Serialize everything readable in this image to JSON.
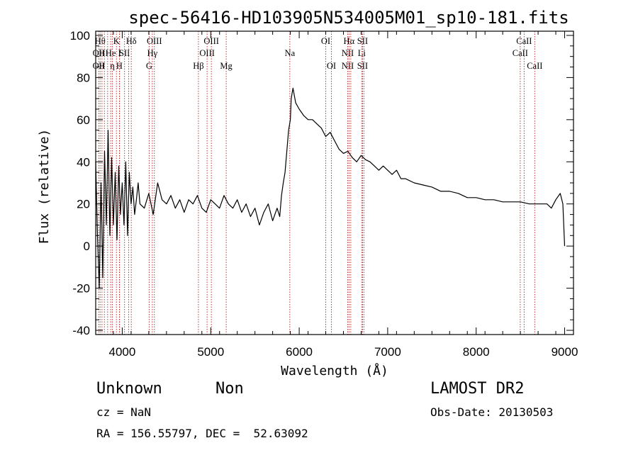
{
  "chart_data": {
    "type": "line",
    "title": "spec-56416-HD103905N534005M01_sp10-181.fits",
    "xlabel": "Wavelength (Å)",
    "ylabel": "Flux (relative)",
    "xlim": [
      3700,
      9100
    ],
    "ylim": [
      -42,
      102
    ],
    "xticks": [
      4000,
      5000,
      6000,
      7000,
      8000,
      9000
    ],
    "yticks": [
      -40,
      -20,
      0,
      20,
      40,
      60,
      80,
      100
    ],
    "grid": false,
    "series": [
      {
        "x": [
          3700,
          3720,
          3740,
          3760,
          3780,
          3800,
          3820,
          3840,
          3860,
          3880,
          3900,
          3920,
          3940,
          3960,
          3980,
          4000,
          4020,
          4040,
          4060,
          4080,
          4100,
          4120,
          4140,
          4160,
          4180,
          4200,
          4250,
          4300,
          4350,
          4400,
          4450,
          4500,
          4550,
          4600,
          4650,
          4700,
          4750,
          4800,
          4850,
          4900,
          4950,
          5000,
          5050,
          5100,
          5150,
          5200,
          5250,
          5300,
          5350,
          5400,
          5450,
          5500,
          5550,
          5600,
          5650,
          5700,
          5750,
          5780,
          5800,
          5820,
          5840,
          5860,
          5880,
          5900,
          5910,
          5930,
          5960,
          6000,
          6050,
          6100,
          6150,
          6200,
          6250,
          6300,
          6350,
          6400,
          6450,
          6500,
          6550,
          6600,
          6650,
          6700,
          6750,
          6800,
          6850,
          6900,
          6950,
          7000,
          7050,
          7100,
          7150,
          7200,
          7300,
          7400,
          7500,
          7600,
          7700,
          7800,
          7900,
          8000,
          8100,
          8200,
          8300,
          8400,
          8500,
          8600,
          8700,
          8800,
          8850,
          8900,
          8950,
          8980,
          9000
        ],
        "y": [
          40,
          5,
          -20,
          30,
          -15,
          45,
          10,
          55,
          5,
          42,
          10,
          35,
          3,
          38,
          15,
          30,
          10,
          40,
          5,
          35,
          20,
          28,
          15,
          22,
          30,
          20,
          18,
          25,
          15,
          30,
          22,
          20,
          24,
          18,
          22,
          16,
          22,
          20,
          24,
          18,
          16,
          22,
          20,
          18,
          24,
          20,
          18,
          22,
          16,
          20,
          14,
          18,
          10,
          16,
          20,
          12,
          18,
          14,
          24,
          30,
          35,
          45,
          55,
          60,
          70,
          75,
          68,
          65,
          62,
          60,
          60,
          58,
          56,
          52,
          54,
          50,
          46,
          44,
          45,
          42,
          40,
          43,
          41,
          40,
          38,
          36,
          38,
          36,
          34,
          36,
          32,
          32,
          30,
          29,
          28,
          26,
          26,
          25,
          23,
          23,
          22,
          22,
          21,
          21,
          21,
          20,
          20,
          20,
          18,
          22,
          25,
          20,
          0
        ]
      }
    ],
    "line_markers": [
      {
        "wl": 3734,
        "labels": [
          {
            "text": "OII",
            "row": 1
          },
          {
            "text": "OII",
            "row": 2
          }
        ]
      },
      {
        "wl": 3750,
        "labels": [
          {
            "text": "Hθ",
            "row": 0
          }
        ]
      },
      {
        "wl": 3771,
        "labels": [
          {
            "text": "H",
            "row": 1
          },
          {
            "text": "H",
            "row": 2
          }
        ]
      },
      {
        "wl": 3798,
        "labels": [
          {
            "text": "",
            "row": 0
          }
        ]
      },
      {
        "wl": 3835,
        "labels": [
          {
            "text": "",
            "row": 0
          }
        ]
      },
      {
        "wl": 3869,
        "labels": [
          {
            "text": "He",
            "row": 1
          }
        ]
      },
      {
        "wl": 3889,
        "labels": [
          {
            "text": "η",
            "row": 2
          }
        ]
      },
      {
        "wl": 3934,
        "labels": [
          {
            "text": "K",
            "row": 0
          }
        ]
      },
      {
        "wl": 3968,
        "labels": [
          {
            "text": "H",
            "row": 2
          }
        ]
      },
      {
        "wl": 3970,
        "labels": [
          {
            "text": "I",
            "row": 1
          }
        ]
      },
      {
        "wl": 4026,
        "labels": [
          {
            "text": "SII",
            "row": 1
          }
        ]
      },
      {
        "wl": 4072,
        "labels": [
          {
            "text": "",
            "row": 0
          }
        ]
      },
      {
        "wl": 4102,
        "labels": [
          {
            "text": "Hδ",
            "row": 0
          }
        ]
      },
      {
        "wl": 4304,
        "labels": [
          {
            "text": "G",
            "row": 2
          }
        ]
      },
      {
        "wl": 4340,
        "labels": [
          {
            "text": "Hγ",
            "row": 1
          }
        ]
      },
      {
        "wl": 4363,
        "labels": [
          {
            "text": "OIII",
            "row": 0
          }
        ]
      },
      {
        "wl": 4861,
        "labels": [
          {
            "text": "Hβ",
            "row": 2
          }
        ]
      },
      {
        "wl": 4959,
        "labels": [
          {
            "text": "OIII",
            "row": 1
          }
        ]
      },
      {
        "wl": 5007,
        "labels": [
          {
            "text": "OIII",
            "row": 0
          }
        ]
      },
      {
        "wl": 5175,
        "labels": [
          {
            "text": "Mg",
            "row": 2
          }
        ]
      },
      {
        "wl": 5894,
        "labels": [
          {
            "text": "Na",
            "row": 1
          }
        ]
      },
      {
        "wl": 6300,
        "labels": [
          {
            "text": "OI",
            "row": 0
          }
        ]
      },
      {
        "wl": 6364,
        "labels": [
          {
            "text": "OI",
            "row": 2
          }
        ]
      },
      {
        "wl": 6548,
        "labels": [
          {
            "text": "NII",
            "row": 1
          },
          {
            "text": "NII",
            "row": 2
          }
        ]
      },
      {
        "wl": 6563,
        "labels": [
          {
            "text": "Hα",
            "row": 0
          }
        ]
      },
      {
        "wl": 6583,
        "labels": [
          {
            "text": "",
            "row": 0
          }
        ]
      },
      {
        "wl": 6707,
        "labels": [
          {
            "text": "Li",
            "row": 1
          }
        ]
      },
      {
        "wl": 6716,
        "labels": [
          {
            "text": "SII",
            "row": 0
          },
          {
            "text": "SII",
            "row": 2
          }
        ]
      },
      {
        "wl": 6731,
        "labels": [
          {
            "text": "",
            "row": 0
          }
        ]
      },
      {
        "wl": 8498,
        "labels": [
          {
            "text": "CaII",
            "row": 1
          }
        ]
      },
      {
        "wl": 8542,
        "labels": [
          {
            "text": "CaII",
            "row": 0
          }
        ]
      },
      {
        "wl": 8662,
        "labels": [
          {
            "text": "CaII",
            "row": 2
          }
        ]
      }
    ],
    "colors": {
      "spectrum": "#000000",
      "markers": "#b22222",
      "axes": "#000000"
    }
  },
  "footer": {
    "object_class": "Unknown",
    "object_subclass": "Non",
    "survey": "LAMOST DR2",
    "redshift": "cz = NaN",
    "obs_date": "Obs-Date: 20130503",
    "coords": "RA = 156.55797, DEC =  52.63092"
  }
}
